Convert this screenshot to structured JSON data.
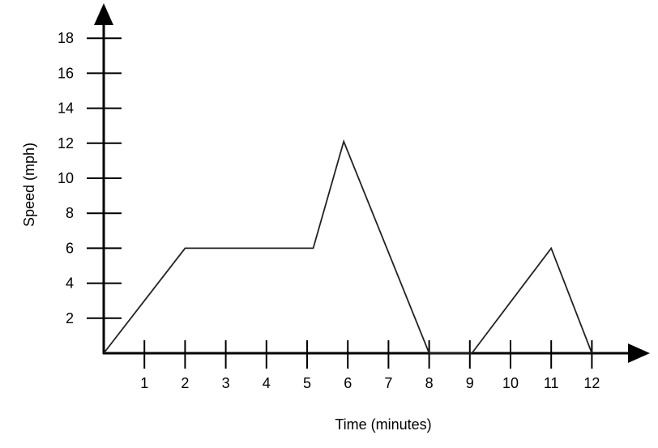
{
  "chart_data": {
    "type": "line",
    "title": "",
    "xlabel": "Time (minutes)",
    "ylabel": "Speed (mph)",
    "x_ticks": [
      1,
      2,
      3,
      4,
      5,
      6,
      7,
      8,
      9,
      10,
      11,
      12
    ],
    "y_ticks": [
      2,
      4,
      6,
      8,
      10,
      12,
      14,
      16,
      18
    ],
    "xlim": [
      0,
      13.3
    ],
    "ylim": [
      0,
      19.5
    ],
    "grid": false,
    "series": [
      {
        "name": "Speed",
        "x": [
          0,
          2,
          5.15,
          5.9,
          8,
          9.05,
          11,
          12
        ],
        "y": [
          0,
          6,
          6,
          12.1,
          0,
          0,
          6,
          0
        ],
        "color": "#222222"
      }
    ]
  }
}
